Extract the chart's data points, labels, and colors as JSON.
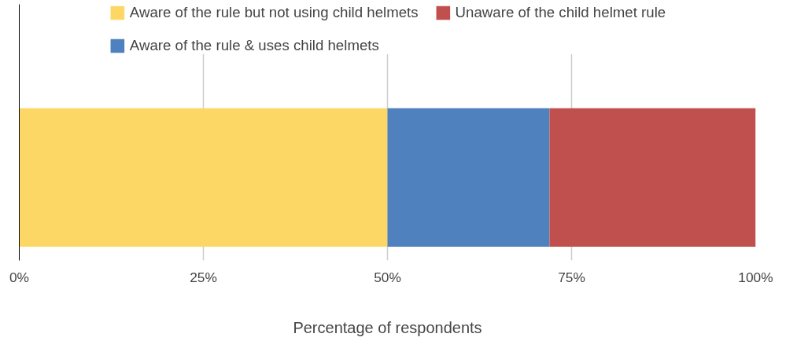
{
  "chart_data": {
    "type": "bar",
    "orientation": "horizontal",
    "stacked": true,
    "categories": [
      null
    ],
    "series": [
      {
        "name": "Aware of the rule but not using child helmets",
        "color": "#fdd766",
        "values": [
          50
        ]
      },
      {
        "name": "Aware of the rule & uses child helmets",
        "color": "#4e81bd",
        "values": [
          22
        ]
      },
      {
        "name": "Unaware of the child helmet rule",
        "color": "#c0504d",
        "values": [
          28
        ]
      }
    ],
    "xlabel": "Percentage of respondents",
    "xlim": [
      0,
      100
    ],
    "xticks": [
      {
        "value": 0,
        "label": "0%"
      },
      {
        "value": 25,
        "label": "25%"
      },
      {
        "value": 50,
        "label": "50%"
      },
      {
        "value": 75,
        "label": "75%"
      },
      {
        "value": 100,
        "label": "100%"
      }
    ],
    "grid": "x",
    "legend": "top",
    "tick_labels": "x"
  }
}
